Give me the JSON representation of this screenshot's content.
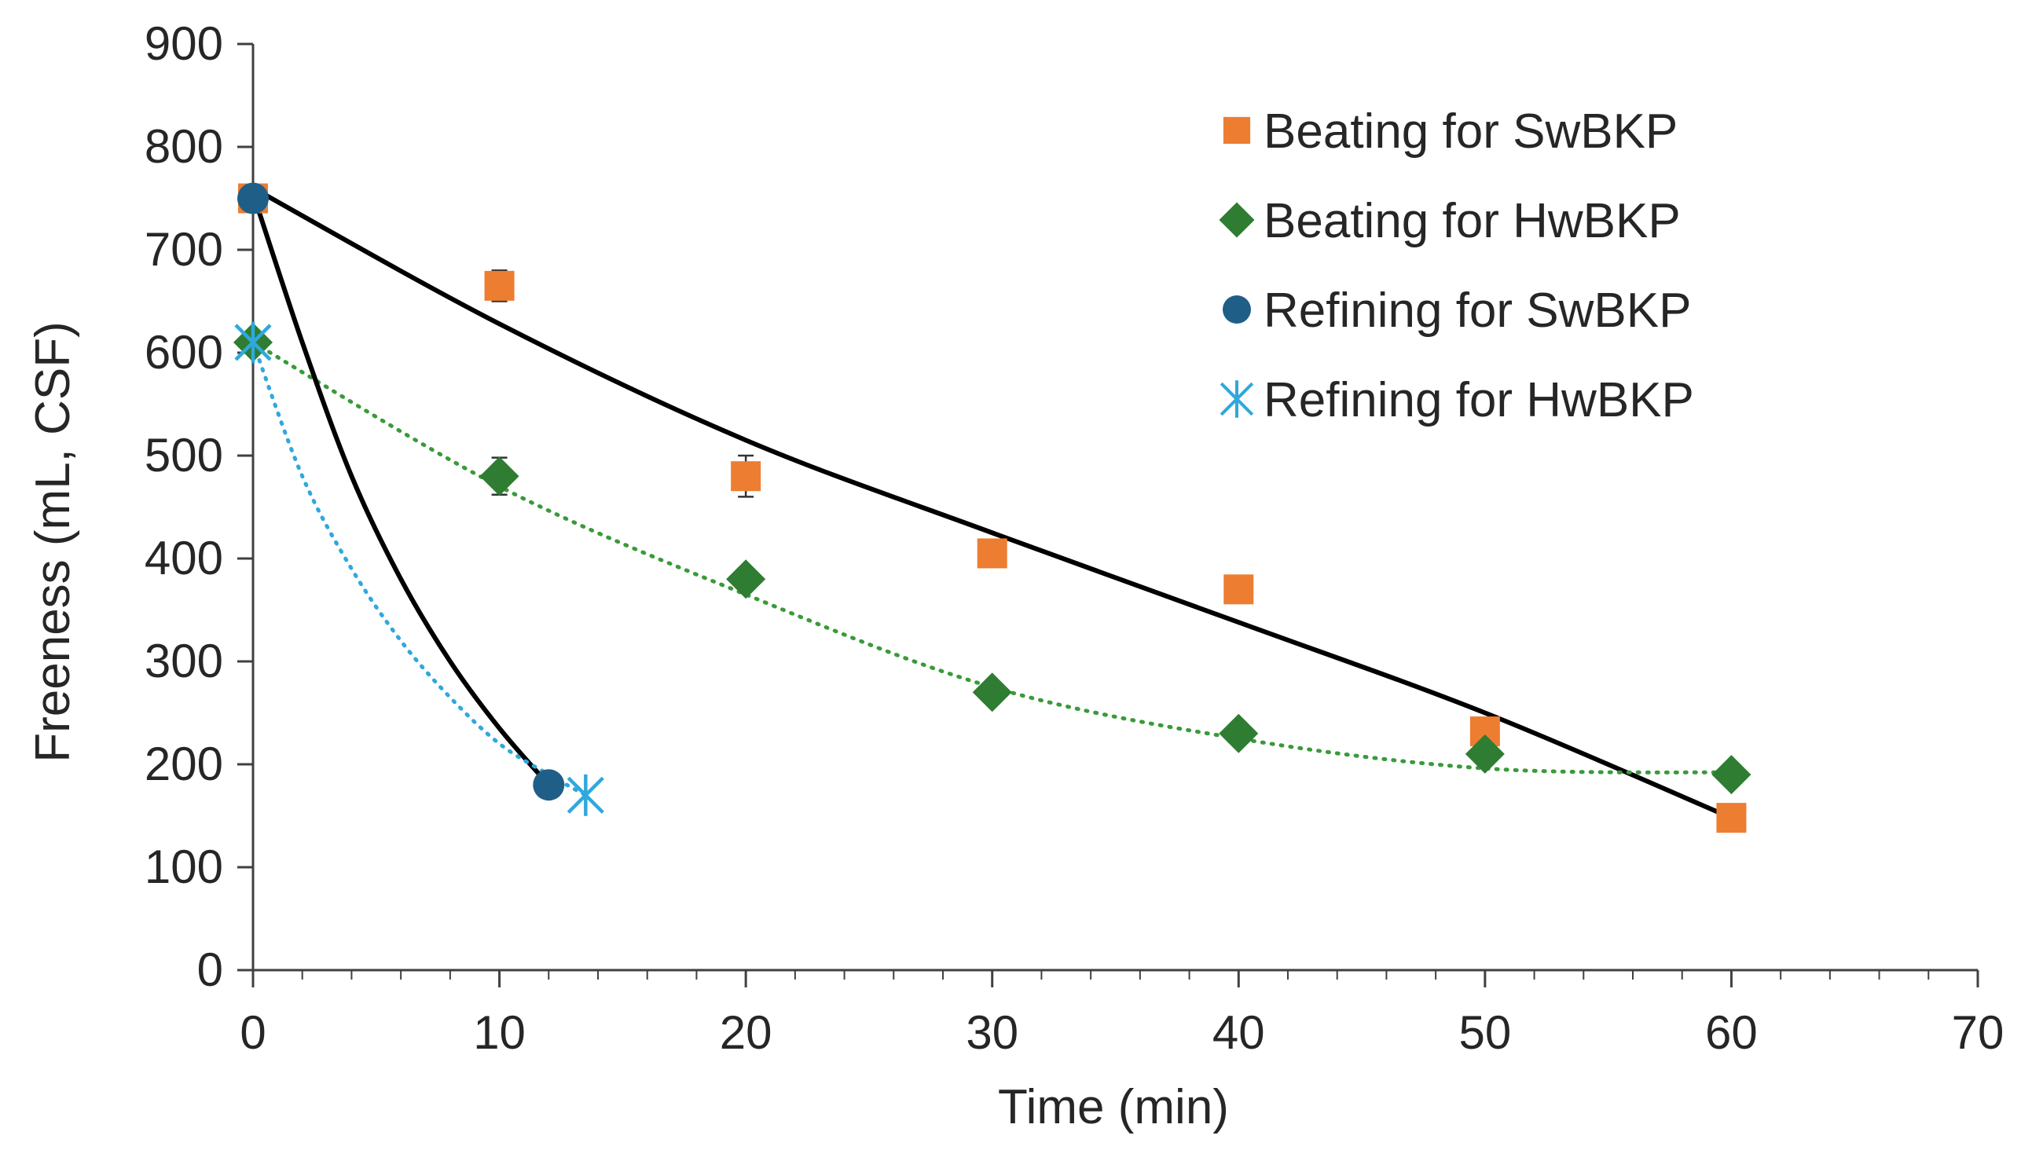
{
  "chart_data": {
    "type": "scatter",
    "title": "",
    "xlabel": "Time (min)",
    "ylabel": "Freeness (mL, CSF)",
    "xlim": [
      0,
      70
    ],
    "ylim": [
      0,
      900
    ],
    "x_ticks": [
      0,
      10,
      20,
      30,
      40,
      50,
      60,
      70
    ],
    "y_ticks": [
      0,
      100,
      200,
      300,
      400,
      500,
      600,
      700,
      800,
      900
    ],
    "x_tick_labels": [
      "0",
      "10",
      "20",
      "30",
      "40",
      "50",
      "60",
      "70"
    ],
    "y_tick_labels": [
      "0",
      "100",
      "200",
      "300",
      "400",
      "500",
      "600",
      "700",
      "800",
      "900"
    ],
    "grid": false,
    "legend_position": "top-right",
    "series": [
      {
        "name": "Beating for SwBKP",
        "marker": "square",
        "color": "#ED7D31",
        "x": [
          0,
          10,
          20,
          30,
          40,
          50,
          60
        ],
        "y": [
          750,
          665,
          480,
          405,
          370,
          232,
          148
        ],
        "error": [
          0,
          15,
          20,
          0,
          0,
          0,
          0
        ],
        "trendline": {
          "style": "solid",
          "color": "#000000",
          "x": [
            0,
            10,
            20,
            30,
            40,
            50,
            60
          ],
          "y": [
            760,
            628,
            515,
            425,
            338,
            250,
            148
          ]
        }
      },
      {
        "name": "Beating for HwBKP",
        "marker": "diamond",
        "color": "#2E7D32",
        "x": [
          0,
          10,
          20,
          30,
          40,
          50,
          60
        ],
        "y": [
          610,
          480,
          380,
          270,
          230,
          210,
          190
        ],
        "error": [
          0,
          18,
          0,
          0,
          0,
          0,
          0
        ],
        "trendline": {
          "style": "dotted",
          "color": "#3A9A3A",
          "x": [
            0,
            10,
            20,
            30,
            40,
            50,
            60
          ],
          "y": [
            610,
            470,
            365,
            275,
            225,
            196,
            192
          ]
        }
      },
      {
        "name": "Refining for SwBKP",
        "marker": "circle",
        "color": "#1F5E87",
        "x": [
          0,
          12
        ],
        "y": [
          750,
          180
        ],
        "error": [
          0,
          0
        ],
        "trendline": {
          "style": "solid",
          "color": "#000000",
          "x": [
            0,
            2,
            4,
            6,
            8,
            10,
            12
          ],
          "y": [
            755,
            610,
            480,
            380,
            300,
            235,
            180
          ]
        }
      },
      {
        "name": "Refining for HwBKP",
        "marker": "asterisk",
        "color": "#2FA8DD",
        "x": [
          0,
          13.5
        ],
        "y": [
          610,
          170
        ],
        "error": [
          0,
          0
        ],
        "trendline": {
          "style": "dotted",
          "color": "#2FA8DD",
          "x": [
            0,
            2,
            4,
            6,
            8,
            10,
            12,
            13.5
          ],
          "y": [
            610,
            480,
            390,
            320,
            265,
            220,
            190,
            170
          ]
        }
      }
    ]
  }
}
